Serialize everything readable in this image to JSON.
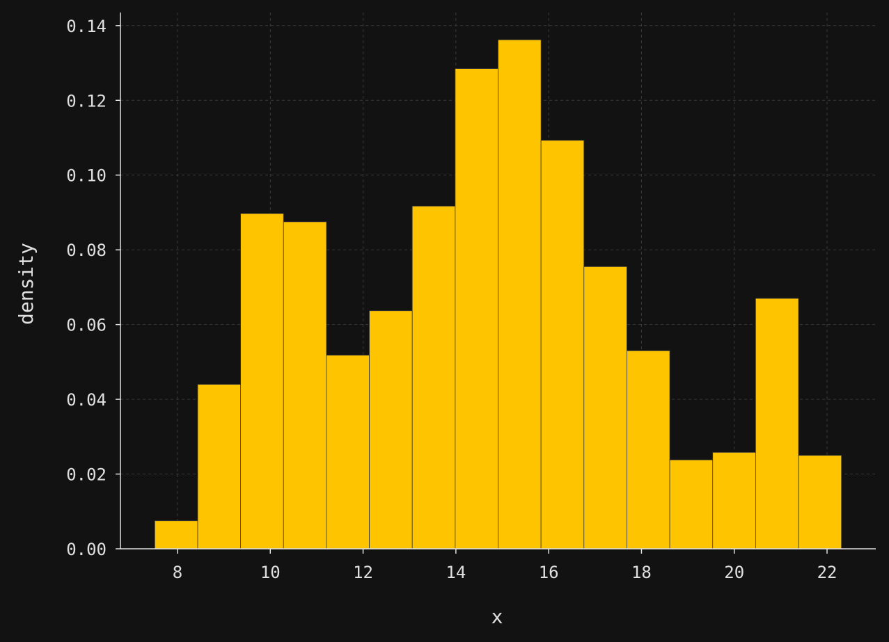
{
  "chart_data": {
    "type": "bar",
    "title": "",
    "xlabel": "x",
    "ylabel": "density",
    "bin_edges": [
      7.51,
      8.435,
      9.36,
      10.285,
      11.21,
      12.135,
      13.06,
      13.985,
      14.91,
      15.835,
      16.76,
      17.685,
      18.61,
      19.535,
      20.46,
      21.385,
      22.31
    ],
    "values": [
      0.0075,
      0.044,
      0.0897,
      0.0875,
      0.0518,
      0.0637,
      0.0917,
      0.1285,
      0.1362,
      0.1093,
      0.0755,
      0.053,
      0.0238,
      0.0258,
      0.067,
      0.025
    ],
    "xlim": [
      6.77,
      23.05
    ],
    "ylim": [
      0.0,
      0.1435
    ],
    "x_ticks": [
      8,
      10,
      12,
      14,
      16,
      18,
      20,
      22
    ],
    "x_tick_labels": [
      "8",
      "10",
      "12",
      "14",
      "16",
      "18",
      "20",
      "22"
    ],
    "y_ticks": [
      0.0,
      0.02,
      0.04,
      0.06,
      0.08,
      0.1,
      0.12,
      0.14
    ],
    "y_tick_labels": [
      "0.00",
      "0.02",
      "0.04",
      "0.06",
      "0.08",
      "0.10",
      "0.12",
      "0.14"
    ],
    "grid": true,
    "colors": {
      "background": "#121212",
      "bar_fill": "#ffc400",
      "bar_edge": "#3a3a3a",
      "axis": "#e0e0e0",
      "grid": "#3a3a3a"
    }
  }
}
